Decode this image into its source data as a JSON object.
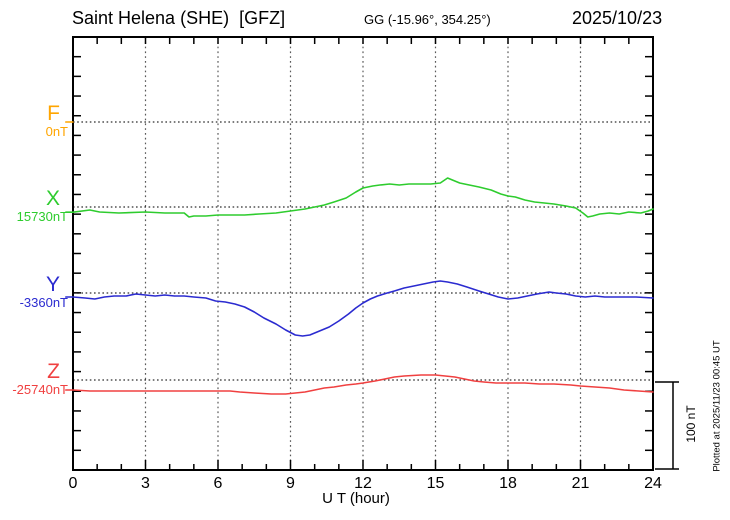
{
  "header": {
    "station": "Saint Helena (SHE)  [GFZ]",
    "gg_coords": "GG (-15.96°, 354.25°)",
    "date": "2025/10/23"
  },
  "axes": {
    "x_tick_labels": [
      "0",
      "3",
      "6",
      "9",
      "12",
      "15",
      "18",
      "21",
      "24"
    ],
    "x_label": "U T (hour)",
    "scale_bar_label": "100 nT"
  },
  "footer_note": "Plotted at 2025/11/23 00:45 UT",
  "chart_data": {
    "type": "line",
    "title": "Saint Helena (SHE) [GFZ] magnetogram 2025/10/23",
    "xlabel": "U T (hour)",
    "x_range_hours": [
      0,
      24
    ],
    "x_gridline_interval_hours": 3,
    "scale_bar_nT": 100,
    "grid": "dotted vertical lines every 3 h; dotted horizontal baseline per component",
    "legend_position": "left margin, one colored letter plus baseline value per component",
    "points_units": "[hour UT, deviation in nT from component baseline]",
    "series": [
      {
        "name": "F",
        "baseline_label": "0nT",
        "color": "#FFA500",
        "points": [
          [
            -0.3,
            0
          ],
          [
            0,
            0
          ]
        ]
      },
      {
        "name": "X",
        "baseline_label": "15730nT",
        "color": "#2ECC2E",
        "points": [
          [
            -0.3,
            -6
          ],
          [
            0,
            -6
          ],
          [
            0.7,
            -3.5
          ],
          [
            1.1,
            -5.8
          ],
          [
            1.9,
            -7
          ],
          [
            3,
            -5.8
          ],
          [
            3.8,
            -7
          ],
          [
            4.6,
            -7
          ],
          [
            4.8,
            -11.6
          ],
          [
            5,
            -10.5
          ],
          [
            5.5,
            -10.5
          ],
          [
            6,
            -9.3
          ],
          [
            6.7,
            -9.3
          ],
          [
            7.1,
            -9.3
          ],
          [
            7.7,
            -8.1
          ],
          [
            8.4,
            -7
          ],
          [
            9,
            -4.7
          ],
          [
            9.6,
            -2.3
          ],
          [
            10,
            0
          ],
          [
            10.4,
            2.3
          ],
          [
            10.8,
            5.8
          ],
          [
            11.3,
            10.5
          ],
          [
            11.7,
            17.4
          ],
          [
            12,
            22.1
          ],
          [
            12.4,
            24.4
          ],
          [
            12.7,
            25.6
          ],
          [
            13.1,
            26.7
          ],
          [
            13.5,
            25.6
          ],
          [
            13.9,
            26.7
          ],
          [
            14.4,
            26.7
          ],
          [
            14.8,
            26.7
          ],
          [
            15.2,
            27.9
          ],
          [
            15.5,
            33.7
          ],
          [
            15.7,
            31.4
          ],
          [
            16,
            27.9
          ],
          [
            16.4,
            25.6
          ],
          [
            16.8,
            23.3
          ],
          [
            17.3,
            19.8
          ],
          [
            17.7,
            15.1
          ],
          [
            18,
            12.8
          ],
          [
            18.3,
            11.6
          ],
          [
            18.7,
            8.1
          ],
          [
            19.1,
            5.8
          ],
          [
            19.5,
            4.7
          ],
          [
            19.9,
            3.5
          ],
          [
            20.4,
            1.2
          ],
          [
            20.8,
            -1.2
          ],
          [
            21.1,
            -7
          ],
          [
            21.3,
            -11.6
          ],
          [
            21.5,
            -10.5
          ],
          [
            21.8,
            -8.1
          ],
          [
            22.2,
            -7
          ],
          [
            22.6,
            -8.1
          ],
          [
            23,
            -5.8
          ],
          [
            23.5,
            -7
          ],
          [
            23.8,
            -4.7
          ],
          [
            24,
            -2.3
          ]
        ]
      },
      {
        "name": "Y",
        "baseline_label": "-3360nT",
        "color": "#2B2BD0",
        "points": [
          [
            -0.3,
            -4.7
          ],
          [
            0,
            -4.7
          ],
          [
            0.5,
            -5.8
          ],
          [
            0.9,
            -7
          ],
          [
            1.3,
            -4.7
          ],
          [
            1.7,
            -3.5
          ],
          [
            2.2,
            -3.5
          ],
          [
            2.6,
            -1.2
          ],
          [
            3,
            -2.3
          ],
          [
            3.4,
            -3.5
          ],
          [
            3.8,
            -2.3
          ],
          [
            4.2,
            -3.5
          ],
          [
            4.6,
            -3.5
          ],
          [
            5,
            -4.7
          ],
          [
            5.5,
            -5.8
          ],
          [
            5.9,
            -9.3
          ],
          [
            6.3,
            -10.5
          ],
          [
            6.7,
            -12.8
          ],
          [
            7.1,
            -16.3
          ],
          [
            7.5,
            -22.1
          ],
          [
            7.9,
            -29.1
          ],
          [
            8.4,
            -36
          ],
          [
            8.8,
            -43
          ],
          [
            9.2,
            -48.8
          ],
          [
            9.5,
            -50
          ],
          [
            9.8,
            -48.8
          ],
          [
            10.1,
            -45.3
          ],
          [
            10.6,
            -39.5
          ],
          [
            11,
            -32.6
          ],
          [
            11.4,
            -24.4
          ],
          [
            11.7,
            -17.4
          ],
          [
            12,
            -11.6
          ],
          [
            12.3,
            -7
          ],
          [
            12.6,
            -3.5
          ],
          [
            13,
            0
          ],
          [
            13.3,
            2.3
          ],
          [
            13.7,
            5.8
          ],
          [
            14.1,
            8.1
          ],
          [
            14.5,
            10.5
          ],
          [
            14.9,
            12.8
          ],
          [
            15.2,
            14
          ],
          [
            15.5,
            12.8
          ],
          [
            15.9,
            10.5
          ],
          [
            16.3,
            7
          ],
          [
            16.8,
            2.3
          ],
          [
            17.2,
            -1.2
          ],
          [
            17.6,
            -4.7
          ],
          [
            18,
            -7
          ],
          [
            18.4,
            -5.8
          ],
          [
            18.8,
            -3.5
          ],
          [
            19.2,
            -1.2
          ],
          [
            19.7,
            1.2
          ],
          [
            20,
            0
          ],
          [
            20.4,
            -1.2
          ],
          [
            20.8,
            -3.5
          ],
          [
            21.2,
            -4.7
          ],
          [
            21.6,
            -3.5
          ],
          [
            22,
            -4.7
          ],
          [
            22.6,
            -4.7
          ],
          [
            23.3,
            -4.7
          ],
          [
            24,
            -5.8
          ]
        ]
      },
      {
        "name": "Z",
        "baseline_label": "-25740nT",
        "color": "#F04040",
        "points": [
          [
            -0.3,
            -11.6
          ],
          [
            0,
            -11.6
          ],
          [
            0.7,
            -12.8
          ],
          [
            2,
            -12.8
          ],
          [
            3,
            -12.8
          ],
          [
            4,
            -12.8
          ],
          [
            5,
            -12.8
          ],
          [
            6,
            -12.8
          ],
          [
            6.5,
            -12.8
          ],
          [
            6.9,
            -14
          ],
          [
            7.5,
            -15.1
          ],
          [
            8.2,
            -16.3
          ],
          [
            8.8,
            -16.3
          ],
          [
            9.2,
            -15.1
          ],
          [
            9.6,
            -14
          ],
          [
            10,
            -11.6
          ],
          [
            10.4,
            -9.3
          ],
          [
            10.8,
            -8.1
          ],
          [
            11.3,
            -5.8
          ],
          [
            11.7,
            -4.7
          ],
          [
            12,
            -3.5
          ],
          [
            12.5,
            -1.2
          ],
          [
            12.9,
            1.2
          ],
          [
            13.3,
            3.5
          ],
          [
            13.7,
            4.7
          ],
          [
            14.4,
            5.8
          ],
          [
            15,
            5.8
          ],
          [
            15.4,
            4.7
          ],
          [
            15.8,
            3.5
          ],
          [
            16.2,
            1.2
          ],
          [
            16.6,
            -1.2
          ],
          [
            17,
            -2.3
          ],
          [
            17.5,
            -3.5
          ],
          [
            18.1,
            -3.5
          ],
          [
            18.7,
            -3.5
          ],
          [
            19.3,
            -4.7
          ],
          [
            19.9,
            -4.7
          ],
          [
            20.6,
            -5.8
          ],
          [
            21,
            -7
          ],
          [
            21.6,
            -8.1
          ],
          [
            22.2,
            -9.3
          ],
          [
            22.8,
            -11.6
          ],
          [
            23.4,
            -12.8
          ],
          [
            24,
            -14
          ]
        ]
      }
    ]
  }
}
